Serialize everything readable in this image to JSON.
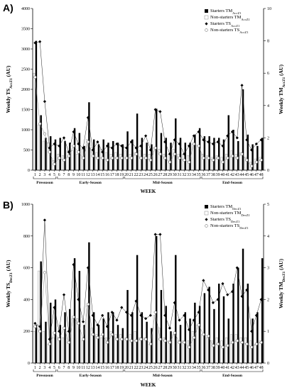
{
  "chart_data": [
    {
      "type": "bar",
      "panel_label": "A)",
      "ylabel_left": "Weekly TS",
      "ylabel_left_sub": "AccZ1",
      "ylabel_left_unit": "(AU)",
      "ylabel_right": "Weekly TM",
      "ylabel_right_sub": "AccZ1",
      "ylabel_right_unit": "(AU)",
      "xlabel": "WEEK",
      "ylim_left": [
        0,
        4000
      ],
      "yticks_left": [
        0,
        500,
        1000,
        1500,
        2000,
        2500,
        3000,
        3500,
        4000
      ],
      "ylim_right": [
        0,
        10
      ],
      "yticks_right": [
        0,
        2,
        4,
        6,
        8,
        10
      ],
      "legend": [
        {
          "label": "Starters TM",
          "sub": "AccZ1",
          "marker": "black-bar"
        },
        {
          "label": "Non-starters TM",
          "sub": "AccZ1",
          "marker": "white-bar"
        },
        {
          "label": "Starters TS",
          "sub": "AccZ1",
          "marker": "black-diamond"
        },
        {
          "label": "Non-starters TS",
          "sub": "AccZ1",
          "marker": "white-circle"
        }
      ],
      "x": [
        1,
        2,
        3,
        4,
        5,
        6,
        7,
        8,
        9,
        10,
        11,
        12,
        13,
        14,
        15,
        16,
        17,
        18,
        19,
        20,
        21,
        22,
        23,
        24,
        25,
        26,
        27,
        28,
        29,
        30,
        31,
        32,
        33,
        34,
        35,
        36,
        37,
        38,
        39,
        40,
        41,
        42,
        43,
        44,
        45,
        46,
        47,
        48
      ],
      "series": [
        {
          "name": "Starters TM",
          "sub": "AccZ1",
          "axis": "right",
          "style": "black-bar",
          "values": [
            8.0,
            3.4,
            2.0,
            2.1,
            1.9,
            2.0,
            1.8,
            1.7,
            2.6,
            2.3,
            1.5,
            4.2,
            1.9,
            1.6,
            1.9,
            1.7,
            1.8,
            1.7,
            1.6,
            2.4,
            1.9,
            3.5,
            2.0,
            1.7,
            1.6,
            3.8,
            2.3,
            2.0,
            1.7,
            3.2,
            2.0,
            1.7,
            1.7,
            2.2,
            2.6,
            2.1,
            2.1,
            2.0,
            2.0,
            1.9,
            3.4,
            2.5,
            1.8,
            5.0,
            2.2,
            1.6,
            1.5,
            2.0
          ]
        },
        {
          "name": "Non-starters TM",
          "sub": "AccZ1",
          "axis": "right",
          "style": "white-bar",
          "values": [
            6.0,
            2.8,
            1.8,
            1.7,
            0.6,
            1.0,
            0.9,
            1.2,
            1.2,
            1.0,
            1.3,
            1.9,
            1.4,
            1.1,
            1.3,
            1.1,
            1.0,
            1.1,
            1.0,
            1.2,
            1.0,
            1.1,
            1.2,
            1.0,
            1.0,
            1.4,
            1.3,
            1.0,
            1.0,
            1.3,
            1.0,
            1.0,
            0.9,
            1.6,
            1.5,
            1.0,
            0.9,
            0.8,
            0.9,
            0.8,
            1.0,
            1.2,
            1.0,
            1.1,
            0.8,
            0.5,
            0.7,
            0.8
          ]
        },
        {
          "name": "Starters TS",
          "sub": "AccZ1",
          "axis": "left",
          "style": "black-diamond",
          "values": [
            3150,
            3180,
            1700,
            550,
            650,
            600,
            800,
            450,
            950,
            650,
            550,
            1300,
            500,
            700,
            450,
            600,
            550,
            650,
            600,
            550,
            700,
            550,
            600,
            850,
            500,
            1500,
            1450,
            700,
            400,
            750,
            650,
            400,
            600,
            850,
            950,
            750,
            700,
            650,
            700,
            600,
            850,
            950,
            800,
            2100,
            750,
            500,
            650,
            750
          ]
        },
        {
          "name": "Non-starters TS",
          "sub": "AccZ1",
          "axis": "left",
          "style": "white-circle",
          "values": [
            2300,
            1150,
            900,
            450,
            150,
            300,
            250,
            350,
            600,
            450,
            300,
            700,
            350,
            300,
            300,
            250,
            300,
            300,
            300,
            300,
            300,
            400,
            300,
            300,
            250,
            550,
            400,
            300,
            200,
            400,
            300,
            250,
            200,
            650,
            600,
            300,
            300,
            250,
            300,
            200,
            300,
            350,
            300,
            400,
            250,
            100,
            200,
            250
          ]
        }
      ],
      "phases": [
        {
          "label": "Preseason",
          "start": 1,
          "end": 5
        },
        {
          "label": "Early-Season",
          "start": 6,
          "end": 19
        },
        {
          "label": "Mid-Season",
          "start": 20,
          "end": 35
        },
        {
          "label": "End-Season",
          "start": 36,
          "end": 48
        }
      ]
    },
    {
      "type": "bar",
      "panel_label": "B)",
      "ylabel_left": "Weekly TS",
      "ylabel_left_sub": "DecZ1",
      "ylabel_left_unit": "(AU)",
      "ylabel_right": "Weekly TM",
      "ylabel_right_sub": "DecZ1",
      "ylabel_right_unit": "(AU)",
      "xlabel": "WEEK",
      "ylim_left": [
        0,
        1000
      ],
      "yticks_left": [
        0,
        200,
        400,
        600,
        800,
        1000
      ],
      "ylim_right": [
        0,
        5
      ],
      "yticks_right": [
        0,
        1,
        2,
        3,
        4,
        5
      ],
      "legend": [
        {
          "label": "Starters TM",
          "sub": "DecZ1",
          "marker": "black-bar"
        },
        {
          "label": "Non-starters TM",
          "sub": "DecZ1",
          "marker": "white-bar"
        },
        {
          "label": "Starters TS",
          "sub": "DecZ1",
          "marker": "black-diamond"
        },
        {
          "label": "Non-starters TS",
          "sub": "DecZ1",
          "marker": "white-circle"
        }
      ],
      "x": [
        1,
        2,
        3,
        4,
        5,
        6,
        7,
        8,
        9,
        10,
        11,
        12,
        13,
        14,
        15,
        16,
        17,
        18,
        19,
        20,
        21,
        22,
        23,
        24,
        25,
        26,
        27,
        28,
        29,
        30,
        31,
        32,
        33,
        34,
        35,
        36,
        37,
        38,
        39,
        40,
        41,
        42,
        43,
        44,
        45,
        46,
        47,
        48
      ],
      "series": [
        {
          "name": "Starters TM",
          "sub": "DecZ1",
          "axis": "right",
          "style": "black-bar",
          "values": [
            1.2,
            3.2,
            1.3,
            1.9,
            2.0,
            1.2,
            1.6,
            1.7,
            3.3,
            2.9,
            1.2,
            3.8,
            1.6,
            1.2,
            1.4,
            1.6,
            1.6,
            1.2,
            1.1,
            2.3,
            1.6,
            3.4,
            1.6,
            1.3,
            1.1,
            4.0,
            2.3,
            1.8,
            1.0,
            3.4,
            1.2,
            1.6,
            1.4,
            1.9,
            1.8,
            2.2,
            2.4,
            1.7,
            2.5,
            2.1,
            1.4,
            2.5,
            3.0,
            3.6,
            2.5,
            1.4,
            1.6,
            3.3
          ]
        },
        {
          "name": "Non-starters TM",
          "sub": "DecZ1",
          "axis": "right",
          "style": "white-bar",
          "values": [
            1.0,
            2.9,
            1.0,
            0.6,
            0.8,
            0.8,
            0.8,
            1.0,
            1.4,
            1.4,
            0.7,
            1.8,
            1.1,
            0.9,
            0.8,
            0.8,
            1.0,
            0.9,
            0.9,
            0.8,
            0.9,
            1.0,
            0.8,
            0.8,
            0.6,
            1.5,
            1.1,
            0.8,
            0.7,
            0.9,
            0.7,
            0.7,
            0.7,
            1.0,
            1.2,
            0.9,
            0.8,
            0.7,
            0.8,
            0.7,
            0.8,
            0.9,
            0.9,
            0.8,
            0.8,
            0.7,
            0.6,
            0.7
          ]
        },
        {
          "name": "Starters TS",
          "sub": "DecZ1",
          "axis": "left",
          "style": "black-diamond",
          "values": [
            250,
            230,
            900,
            150,
            350,
            200,
            430,
            200,
            620,
            400,
            260,
            600,
            300,
            240,
            300,
            230,
            320,
            270,
            350,
            320,
            300,
            390,
            300,
            280,
            300,
            810,
            810,
            300,
            220,
            380,
            270,
            300,
            210,
            270,
            320,
            520,
            460,
            380,
            400,
            500,
            430,
            450,
            600,
            420,
            460,
            200,
            300,
            400
          ]
        },
        {
          "name": "Non-starters TS",
          "sub": "DecZ1",
          "axis": "left",
          "style": "white-circle",
          "values": [
            230,
            200,
            570,
            120,
            190,
            150,
            220,
            130,
            290,
            250,
            150,
            370,
            180,
            160,
            180,
            130,
            180,
            150,
            150,
            150,
            140,
            140,
            150,
            150,
            120,
            320,
            150,
            140,
            130,
            190,
            130,
            130,
            100,
            160,
            240,
            180,
            170,
            110,
            120,
            100,
            110,
            130,
            140,
            130,
            120,
            100,
            120,
            130
          ]
        }
      ],
      "phases": [
        {
          "label": "Preseason",
          "start": 1,
          "end": 5
        },
        {
          "label": "Early-Season",
          "start": 6,
          "end": 19
        },
        {
          "label": "Mid-Season",
          "start": 20,
          "end": 35
        },
        {
          "label": "End-Season",
          "start": 36,
          "end": 48
        }
      ]
    }
  ]
}
